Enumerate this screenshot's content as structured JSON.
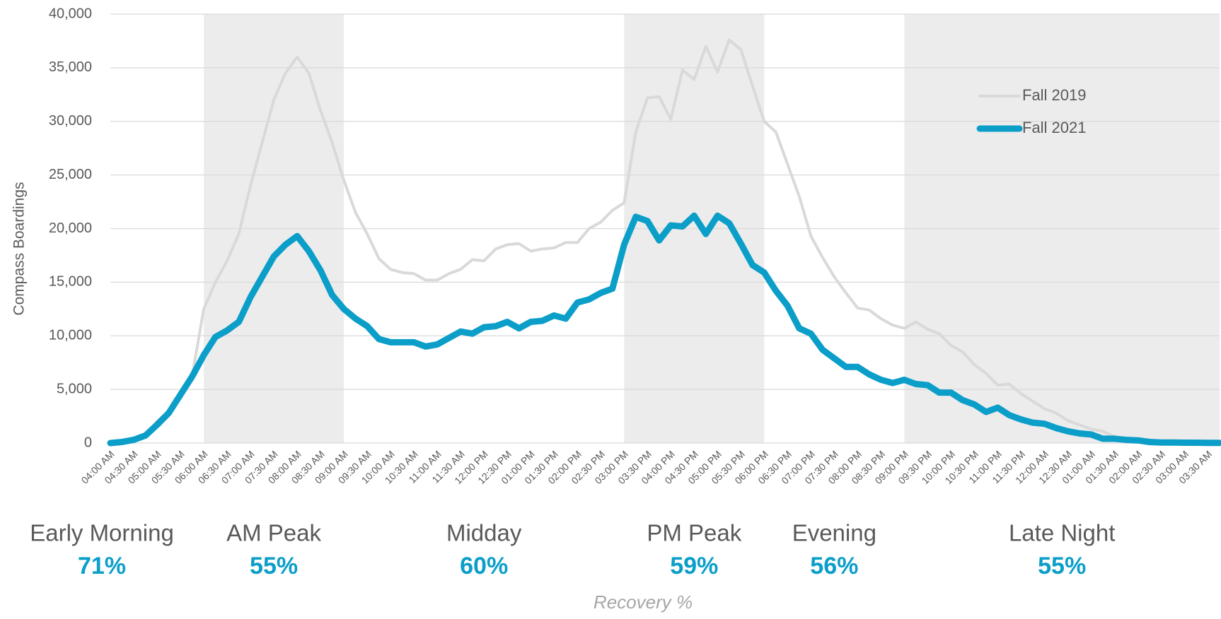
{
  "chart_data": {
    "type": "line",
    "y_label": "Compass Boardings",
    "categories": [
      "04:00 AM",
      null,
      "04:30 AM",
      null,
      "05:00 AM",
      null,
      "05:30 AM",
      null,
      "06:00 AM",
      null,
      "06:30 AM",
      null,
      "07:00 AM",
      null,
      "07:30 AM",
      null,
      "08:00 AM",
      null,
      "08:30 AM",
      null,
      "09:00 AM",
      null,
      "09:30 AM",
      null,
      "10:00 AM",
      null,
      "10:30 AM",
      null,
      "11:00 AM",
      null,
      "11:30 AM",
      null,
      "12:00 PM",
      null,
      "12:30 PM",
      null,
      "01:00 PM",
      null,
      "01:30 PM",
      null,
      "02:00 PM",
      null,
      "02:30 PM",
      null,
      "03:00 PM",
      null,
      "03:30 PM",
      null,
      "04:00 PM",
      null,
      "04:30 PM",
      null,
      "05:00 PM",
      null,
      "05:30 PM",
      null,
      "06:00 PM",
      null,
      "06:30 PM",
      null,
      "07:00 PM",
      null,
      "07:30 PM",
      null,
      "08:00 PM",
      null,
      "08:30 PM",
      null,
      "09:00 PM",
      null,
      "09:30 PM",
      null,
      "10:00 PM",
      null,
      "10:30 PM",
      null,
      "11:00 PM",
      null,
      "11:30 PM",
      null,
      "12:00 AM",
      null,
      "12:30 AM",
      null,
      "01:00 AM",
      null,
      "01:30 AM",
      null,
      "02:00 AM",
      null,
      "02:30 AM",
      null,
      "03:00 AM",
      null,
      "03:30 AM",
      null
    ],
    "series": [
      {
        "name": "Fall 2019",
        "color": "#d9d9d9",
        "width": 4,
        "values": [
          0,
          100,
          300,
          800,
          2000,
          3000,
          4500,
          6200,
          12500,
          15000,
          17000,
          19500,
          24000,
          28000,
          32000,
          34500,
          36000,
          34500,
          31000,
          28000,
          24500,
          21500,
          19500,
          17200,
          16200,
          15900,
          15800,
          15200,
          15200,
          15800,
          16200,
          17100,
          17000,
          18100,
          18500,
          18600,
          17900,
          18100,
          18200,
          18700,
          18700,
          20000,
          20600,
          21700,
          22400,
          29000,
          32200,
          32300,
          30200,
          34800,
          33900,
          37000,
          34600,
          37600,
          36700,
          33300,
          30000,
          29000,
          26000,
          23000,
          19300,
          17300,
          15500,
          14000,
          12600,
          12400,
          11600,
          11000,
          10700,
          11300,
          10600,
          10200,
          9100,
          8500,
          7300,
          6500,
          5400,
          5500,
          4600,
          3900,
          3200,
          2800,
          2100,
          1700,
          1300,
          1100,
          600,
          400,
          300,
          200,
          150,
          100,
          80,
          50,
          30,
          20
        ]
      },
      {
        "name": "Fall 2021",
        "color": "#0a9ec9",
        "width": 9,
        "values": [
          0,
          100,
          300,
          700,
          1700,
          2800,
          4500,
          6200,
          8200,
          9900,
          10500,
          11300,
          13600,
          15500,
          17400,
          18500,
          19300,
          17900,
          16100,
          13800,
          12500,
          11600,
          10900,
          9700,
          9400,
          9400,
          9400,
          9000,
          9200,
          9800,
          10400,
          10200,
          10800,
          10900,
          11300,
          10700,
          11300,
          11400,
          11900,
          11600,
          13100,
          13400,
          14000,
          14400,
          18500,
          21100,
          20700,
          18900,
          20300,
          20200,
          21200,
          19500,
          21200,
          20500,
          18600,
          16600,
          15900,
          14200,
          12800,
          10700,
          10200,
          8700,
          7900,
          7100,
          7100,
          6400,
          5900,
          5600,
          5900,
          5500,
          5400,
          4700,
          4700,
          4000,
          3600,
          2900,
          3300,
          2600,
          2200,
          1900,
          1800,
          1400,
          1100,
          900,
          800,
          400,
          400,
          300,
          250,
          100,
          50,
          50,
          30,
          30,
          20,
          20
        ]
      }
    ],
    "ylim": [
      0,
      40000
    ],
    "yticks": [
      0,
      {
        "value": 5000,
        "label": "5,000"
      },
      {
        "value": 10000,
        "label": "10,000"
      },
      {
        "value": 15000,
        "label": "15,000"
      },
      {
        "value": 20000,
        "label": "20,000"
      },
      {
        "value": 25000,
        "label": "25,000"
      },
      {
        "value": 30000,
        "label": "30,000"
      },
      {
        "value": 35000,
        "label": "35,000"
      },
      {
        "value": 40000,
        "label": "40,000"
      }
    ],
    "grid": true,
    "legend": "upper right",
    "periods": [
      {
        "name": "Early Morning",
        "from": "04:00 AM",
        "shaded": false,
        "recovery": 71,
        "recovery_label": "71%"
      },
      {
        "name": "AM Peak",
        "from": "06:00 AM",
        "shaded": true,
        "recovery": 55,
        "recovery_label": "55%"
      },
      {
        "name": "Midday",
        "from": "09:00 AM",
        "shaded": false,
        "recovery": 60,
        "recovery_label": "60%"
      },
      {
        "name": "PM Peak",
        "from": "03:00 PM",
        "shaded": true,
        "recovery": 59,
        "recovery_label": "59%"
      },
      {
        "name": "Evening",
        "from": "06:00 PM",
        "shaded": false,
        "recovery": 56,
        "recovery_label": "56%"
      },
      {
        "name": "Late Night",
        "from": "09:00 PM",
        "shaded": true,
        "recovery": 55,
        "recovery_label": "55%"
      }
    ],
    "shade_color": "#ececec",
    "recovery_color": "#0a9ec9",
    "footer": "Recovery %"
  }
}
